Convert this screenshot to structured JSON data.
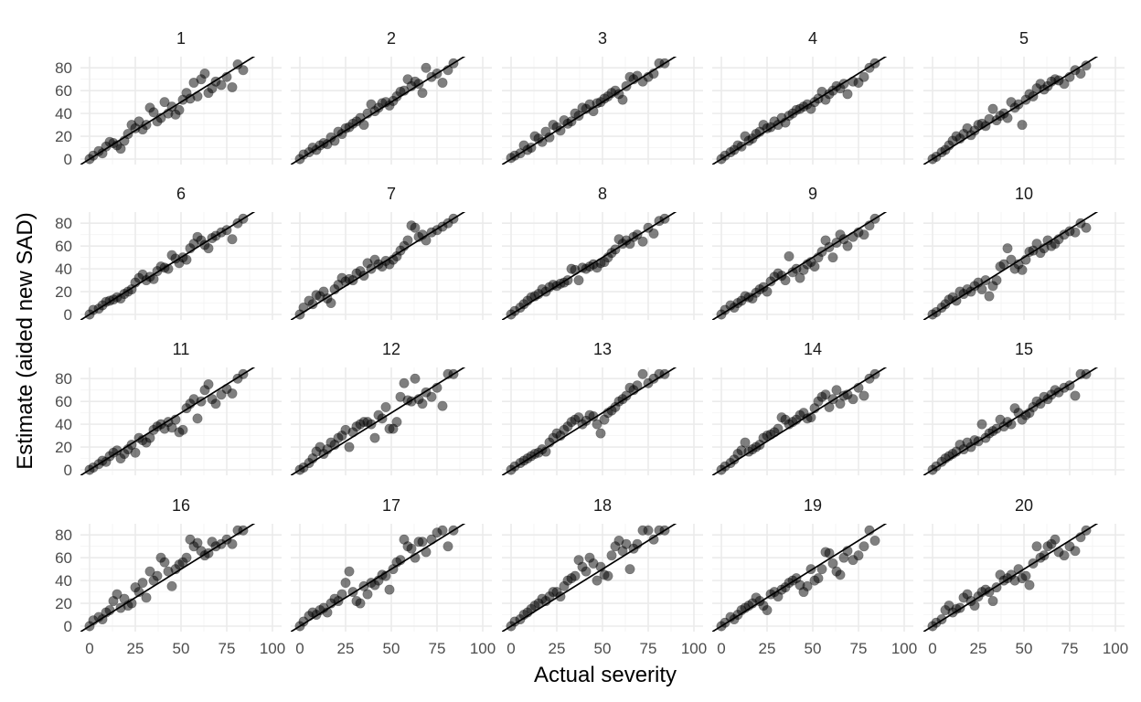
{
  "chart_data": {
    "type": "scatter",
    "facet_layout": {
      "rows": 4,
      "cols": 5
    },
    "xlabel": "Actual severity",
    "ylabel": "Estimate (aided new SAD)",
    "xlim": [
      0,
      100
    ],
    "ylim": [
      0,
      85
    ],
    "x_ticks": [
      0,
      25,
      50,
      75,
      100
    ],
    "x_tick_labels": [
      "0",
      "25",
      "50",
      "75",
      "100"
    ],
    "y_ticks": [
      0,
      20,
      40,
      60,
      80
    ],
    "y_tick_labels": [
      "0",
      "20",
      "40",
      "60",
      "80"
    ],
    "reference_line": {
      "type": "identity",
      "slope": 1,
      "intercept": 0,
      "color": "#000000"
    },
    "point_color": "#000000",
    "point_opacity": 0.5,
    "grid": true,
    "background": "#ffffff",
    "actual_severity": [
      0,
      2,
      5,
      7,
      9,
      11,
      13,
      15,
      17,
      19,
      21,
      23,
      25,
      27,
      29,
      31,
      33,
      35,
      37,
      39,
      41,
      43,
      45,
      47,
      49,
      51,
      53,
      55,
      57,
      59,
      61,
      63,
      65,
      67,
      69,
      72,
      75,
      78,
      81,
      84
    ],
    "panels": [
      {
        "label": "1",
        "estimates": [
          0,
          3,
          7,
          5,
          11,
          15,
          14,
          12,
          9,
          16,
          22,
          30,
          27,
          33,
          26,
          30,
          45,
          41,
          33,
          36,
          50,
          40,
          46,
          39,
          43,
          52,
          58,
          53,
          67,
          55,
          70,
          75,
          58,
          62,
          68,
          65,
          72,
          63,
          83,
          78
        ]
      },
      {
        "label": "2",
        "estimates": [
          0,
          4,
          6,
          10,
          8,
          12,
          14,
          13,
          19,
          16,
          24,
          22,
          27,
          28,
          31,
          33,
          36,
          30,
          40,
          48,
          42,
          45,
          49,
          50,
          47,
          51,
          55,
          59,
          60,
          70,
          64,
          68,
          66,
          58,
          80,
          72,
          75,
          67,
          78,
          84
        ]
      },
      {
        "label": "3",
        "estimates": [
          1,
          3,
          5,
          12,
          8,
          10,
          20,
          18,
          15,
          24,
          19,
          30,
          28,
          25,
          34,
          31,
          33,
          40,
          38,
          45,
          44,
          48,
          42,
          49,
          50,
          53,
          55,
          58,
          60,
          57,
          52,
          64,
          72,
          70,
          73,
          68,
          72,
          75,
          84,
          84
        ]
      },
      {
        "label": "4",
        "estimates": [
          0,
          3,
          6,
          8,
          12,
          11,
          20,
          16,
          18,
          22,
          24,
          30,
          27,
          28,
          33,
          30,
          36,
          32,
          38,
          40,
          43,
          44,
          46,
          48,
          44,
          50,
          53,
          59,
          52,
          57,
          60,
          64,
          62,
          66,
          57,
          68,
          67,
          72,
          80,
          84
        ]
      },
      {
        "label": "5",
        "estimates": [
          0,
          2,
          6,
          8,
          12,
          16,
          20,
          18,
          22,
          27,
          21,
          25,
          30,
          31,
          29,
          35,
          44,
          34,
          38,
          40,
          36,
          50,
          45,
          48,
          30,
          52,
          57,
          55,
          62,
          66,
          61,
          64,
          68,
          70,
          69,
          66,
          72,
          78,
          75,
          82
        ]
      },
      {
        "label": "6",
        "estimates": [
          0,
          4,
          5,
          8,
          11,
          12,
          13,
          15,
          14,
          18,
          20,
          22,
          28,
          32,
          35,
          30,
          33,
          31,
          38,
          42,
          41,
          40,
          52,
          49,
          45,
          50,
          48,
          58,
          62,
          68,
          65,
          61,
          58,
          67,
          69,
          72,
          74,
          66,
          80,
          84
        ]
      },
      {
        "label": "7",
        "estimates": [
          0,
          6,
          12,
          9,
          17,
          16,
          20,
          14,
          10,
          22,
          26,
          32,
          29,
          31,
          30,
          36,
          38,
          34,
          45,
          40,
          48,
          44,
          42,
          47,
          44,
          48,
          51,
          56,
          60,
          65,
          78,
          76,
          68,
          70,
          65,
          72,
          74,
          77,
          80,
          84
        ]
      },
      {
        "label": "8",
        "estimates": [
          0,
          3,
          6,
          9,
          12,
          15,
          16,
          18,
          22,
          20,
          24,
          26,
          25,
          27,
          28,
          30,
          40,
          39,
          30,
          41,
          40,
          42,
          44,
          41,
          45,
          46,
          50,
          54,
          57,
          66,
          62,
          65,
          62,
          68,
          70,
          64,
          76,
          71,
          82,
          84
        ]
      },
      {
        "label": "9",
        "estimates": [
          0,
          4,
          8,
          6,
          10,
          12,
          16,
          15,
          14,
          19,
          22,
          24,
          20,
          29,
          33,
          36,
          34,
          30,
          51,
          37,
          40,
          32,
          39,
          44,
          46,
          42,
          50,
          55,
          65,
          59,
          50,
          63,
          70,
          66,
          60,
          68,
          72,
          70,
          78,
          84
        ]
      },
      {
        "label": "10",
        "estimates": [
          0,
          2,
          6,
          9,
          13,
          15,
          12,
          20,
          18,
          22,
          20,
          25,
          28,
          22,
          30,
          16,
          25,
          30,
          42,
          44,
          58,
          48,
          40,
          44,
          39,
          48,
          55,
          56,
          62,
          54,
          58,
          65,
          60,
          62,
          66,
          70,
          73,
          72,
          80,
          76
        ]
      },
      {
        "label": "11",
        "estimates": [
          0,
          2,
          5,
          8,
          7,
          12,
          15,
          17,
          10,
          14,
          18,
          22,
          15,
          28,
          26,
          24,
          28,
          35,
          38,
          40,
          36,
          42,
          37,
          44,
          33,
          35,
          54,
          58,
          62,
          45,
          60,
          70,
          75,
          62,
          58,
          66,
          71,
          67,
          80,
          84
        ]
      },
      {
        "label": "12",
        "estimates": [
          0,
          2,
          6,
          10,
          16,
          20,
          14,
          18,
          24,
          22,
          28,
          30,
          35,
          20,
          33,
          38,
          40,
          42,
          42,
          40,
          28,
          48,
          45,
          55,
          36,
          36,
          42,
          64,
          76,
          61,
          60,
          80,
          62,
          58,
          68,
          64,
          72,
          56,
          84,
          84
        ]
      },
      {
        "label": "13",
        "estimates": [
          0,
          3,
          6,
          8,
          10,
          12,
          14,
          15,
          18,
          16,
          24,
          28,
          32,
          30,
          35,
          38,
          42,
          44,
          46,
          40,
          43,
          48,
          47,
          40,
          32,
          44,
          50,
          52,
          55,
          60,
          62,
          65,
          72,
          70,
          74,
          84,
          76,
          80,
          84,
          84
        ]
      },
      {
        "label": "14",
        "estimates": [
          0,
          3,
          6,
          9,
          14,
          17,
          24,
          16,
          18,
          20,
          22,
          28,
          30,
          31,
          33,
          36,
          46,
          44,
          40,
          42,
          44,
          48,
          50,
          45,
          46,
          54,
          60,
          64,
          66,
          55,
          62,
          70,
          58,
          65,
          66,
          62,
          72,
          65,
          80,
          84
        ]
      },
      {
        "label": "15",
        "estimates": [
          0,
          3,
          7,
          10,
          12,
          14,
          16,
          22,
          18,
          24,
          20,
          26,
          25,
          40,
          28,
          32,
          34,
          36,
          44,
          38,
          42,
          40,
          54,
          50,
          44,
          48,
          50,
          55,
          60,
          58,
          64,
          62,
          66,
          70,
          68,
          72,
          74,
          65,
          84,
          84
        ]
      },
      {
        "label": "16",
        "estimates": [
          0,
          5,
          8,
          6,
          12,
          14,
          22,
          28,
          16,
          24,
          18,
          20,
          34,
          30,
          38,
          25,
          48,
          40,
          44,
          60,
          56,
          48,
          35,
          50,
          54,
          56,
          60,
          76,
          70,
          73,
          66,
          62,
          64,
          74,
          70,
          72,
          76,
          72,
          84,
          84
        ]
      },
      {
        "label": "17",
        "estimates": [
          0,
          4,
          9,
          12,
          10,
          14,
          16,
          12,
          20,
          24,
          22,
          28,
          38,
          48,
          30,
          22,
          20,
          35,
          28,
          38,
          36,
          40,
          45,
          44,
          32,
          50,
          56,
          58,
          76,
          70,
          68,
          60,
          74,
          74,
          65,
          76,
          82,
          84,
          70,
          84
        ]
      },
      {
        "label": "18",
        "estimates": [
          0,
          4,
          6,
          10,
          12,
          15,
          18,
          20,
          24,
          22,
          26,
          30,
          30,
          26,
          35,
          40,
          42,
          44,
          58,
          52,
          48,
          60,
          55,
          40,
          52,
          45,
          44,
          62,
          70,
          75,
          66,
          72,
          50,
          68,
          72,
          84,
          84,
          76,
          84,
          84
        ]
      },
      {
        "label": "19",
        "estimates": [
          0,
          3,
          8,
          6,
          10,
          14,
          16,
          18,
          20,
          25,
          22,
          18,
          14,
          28,
          30,
          26,
          32,
          34,
          38,
          40,
          42,
          36,
          30,
          35,
          50,
          40,
          42,
          50,
          65,
          64,
          55,
          48,
          45,
          60,
          66,
          58,
          62,
          70,
          84,
          75
        ]
      },
      {
        "label": "20",
        "estimates": [
          0,
          3,
          6,
          14,
          18,
          12,
          15,
          16,
          25,
          28,
          22,
          18,
          26,
          30,
          32,
          30,
          22,
          34,
          45,
          40,
          42,
          45,
          40,
          50,
          42,
          44,
          36,
          55,
          70,
          60,
          62,
          70,
          72,
          76,
          65,
          62,
          70,
          66,
          78,
          84
        ]
      }
    ]
  }
}
